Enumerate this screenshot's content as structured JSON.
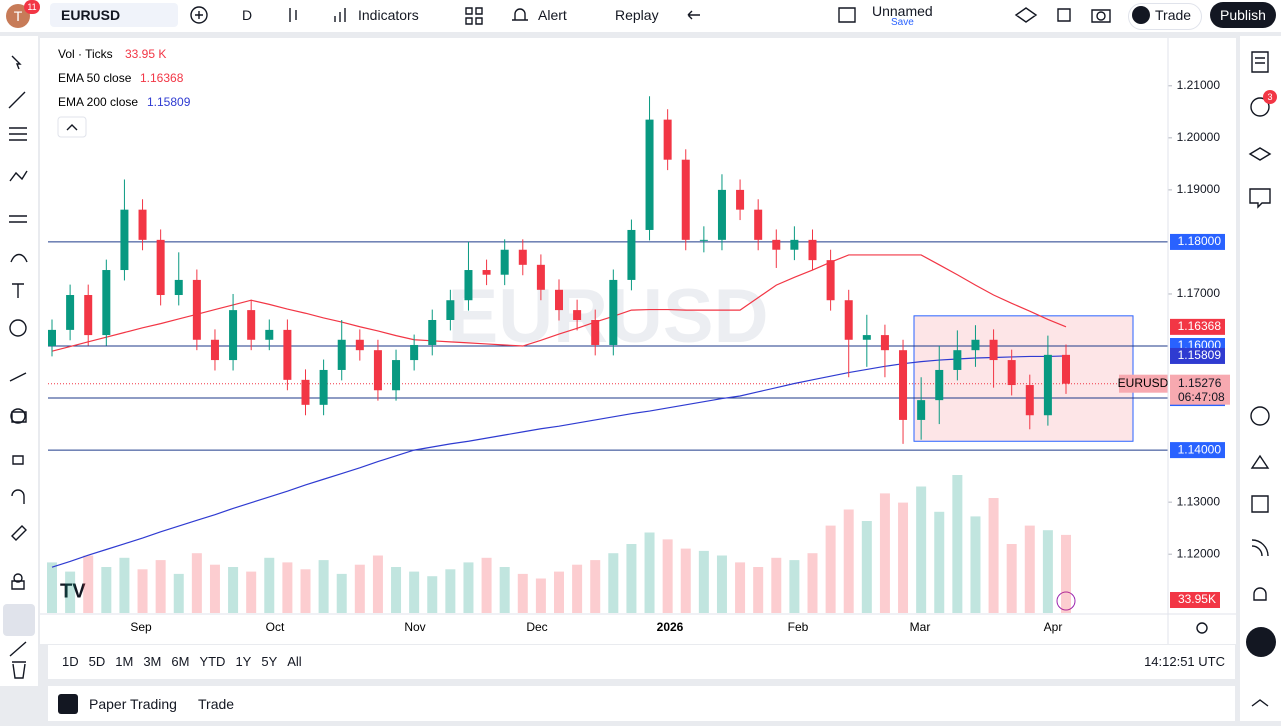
{
  "toolbar": {
    "avatar_badge": "11",
    "symbol": "EURUSD",
    "interval": "D",
    "indicators": "Indicators",
    "alert": "Alert",
    "replay": "Replay",
    "layout_name": "Unnamed",
    "layout_status": "Save",
    "trade": "Trade",
    "publish": "Publish"
  },
  "right_panel": {
    "alerts_badge": "3"
  },
  "chart_data": {
    "type": "candlestick",
    "watermark": "EURUSD",
    "ylim": [
      1.1087,
      1.2188
    ],
    "yticks": [
      {
        "value": 1.21,
        "label": "1.21000"
      },
      {
        "value": 1.2,
        "label": "1.20000"
      },
      {
        "value": 1.19,
        "label": "1.19000"
      },
      {
        "value": 1.17,
        "label": "1.17000"
      },
      {
        "value": 1.13,
        "label": "1.13000"
      },
      {
        "value": 1.12,
        "label": "1.12000"
      }
    ],
    "x_labels": [
      "Sep",
      "Oct",
      "Nov",
      "Dec",
      "2026",
      "Feb",
      "Mar",
      "Apr"
    ],
    "levels": [
      {
        "value": 1.18,
        "label": "1.18000"
      },
      {
        "value": 1.16,
        "label": "1.16000"
      },
      {
        "value": 1.15,
        "label": "1.15000"
      },
      {
        "value": 1.14,
        "label": "1.14000"
      }
    ],
    "level_color": "#1e3a8a",
    "range_box": {
      "top": 1.1658,
      "bottom": 1.1417
    },
    "candles": {
      "name": "EURUSD",
      "up_color": "#089981",
      "down_color": "#f23645",
      "last_label": "1.15276",
      "countdown": "06:47:08",
      "ohlc": [
        [
          1.16,
          1.1651,
          1.158,
          1.1631
        ],
        [
          1.1631,
          1.1718,
          1.1611,
          1.1698
        ],
        [
          1.1698,
          1.1718,
          1.1601,
          1.1621
        ],
        [
          1.1621,
          1.1766,
          1.1601,
          1.1746
        ],
        [
          1.1746,
          1.192,
          1.1726,
          1.1862
        ],
        [
          1.1862,
          1.1882,
          1.1784,
          1.1804
        ],
        [
          1.1804,
          1.1824,
          1.1678,
          1.1698
        ],
        [
          1.1698,
          1.178,
          1.1678,
          1.1727
        ],
        [
          1.1727,
          1.1747,
          1.1592,
          1.1612
        ],
        [
          1.1612,
          1.1632,
          1.1553,
          1.1573
        ],
        [
          1.1573,
          1.17,
          1.1553,
          1.1669
        ],
        [
          1.1669,
          1.1689,
          1.1592,
          1.1612
        ],
        [
          1.1612,
          1.1651,
          1.1592,
          1.1631
        ],
        [
          1.1631,
          1.1651,
          1.1515,
          1.1535
        ],
        [
          1.1535,
          1.1555,
          1.1467,
          1.1487
        ],
        [
          1.1487,
          1.1574,
          1.1467,
          1.1554
        ],
        [
          1.1554,
          1.165,
          1.1534,
          1.1612
        ],
        [
          1.1612,
          1.1632,
          1.1572,
          1.1592
        ],
        [
          1.1592,
          1.1612,
          1.1495,
          1.1515
        ],
        [
          1.1515,
          1.1593,
          1.1495,
          1.1573
        ],
        [
          1.1573,
          1.1622,
          1.1553,
          1.1602
        ],
        [
          1.1602,
          1.167,
          1.1582,
          1.165
        ],
        [
          1.165,
          1.1708,
          1.163,
          1.1688
        ],
        [
          1.1688,
          1.18,
          1.1668,
          1.1746
        ],
        [
          1.1746,
          1.1766,
          1.1717,
          1.1737
        ],
        [
          1.1737,
          1.1805,
          1.1717,
          1.1785
        ],
        [
          1.1785,
          1.1805,
          1.1736,
          1.1756
        ],
        [
          1.1756,
          1.1776,
          1.1688,
          1.1708
        ],
        [
          1.1708,
          1.1728,
          1.1649,
          1.1669
        ],
        [
          1.1669,
          1.1689,
          1.163,
          1.165
        ],
        [
          1.165,
          1.167,
          1.1582,
          1.1602
        ],
        [
          1.1602,
          1.1747,
          1.1582,
          1.1727
        ],
        [
          1.1727,
          1.1843,
          1.1707,
          1.1823
        ],
        [
          1.1823,
          1.208,
          1.1803,
          1.2035
        ],
        [
          1.2035,
          1.2055,
          1.1938,
          1.1958
        ],
        [
          1.1958,
          1.1978,
          1.1784,
          1.1804
        ],
        [
          1.1804,
          1.183,
          1.178,
          1.1804
        ],
        [
          1.1804,
          1.193,
          1.1784,
          1.19
        ],
        [
          1.19,
          1.192,
          1.1842,
          1.1862
        ],
        [
          1.1862,
          1.1882,
          1.1784,
          1.1804
        ],
        [
          1.1804,
          1.1824,
          1.175,
          1.1785
        ],
        [
          1.1785,
          1.183,
          1.1765,
          1.1804
        ],
        [
          1.1804,
          1.1824,
          1.1745,
          1.1765
        ],
        [
          1.1765,
          1.1785,
          1.1668,
          1.1688
        ],
        [
          1.1688,
          1.1708,
          1.154,
          1.1612
        ],
        [
          1.1612,
          1.166,
          1.156,
          1.1621
        ],
        [
          1.1621,
          1.1641,
          1.154,
          1.1592
        ],
        [
          1.1592,
          1.1612,
          1.1412,
          1.1458
        ],
        [
          1.1458,
          1.154,
          1.142,
          1.1496
        ],
        [
          1.1496,
          1.16,
          1.145,
          1.1554
        ],
        [
          1.1554,
          1.163,
          1.1534,
          1.1592
        ],
        [
          1.1592,
          1.164,
          1.156,
          1.1612
        ],
        [
          1.1612,
          1.1632,
          1.152,
          1.1573
        ],
        [
          1.1573,
          1.1593,
          1.1505,
          1.1525
        ],
        [
          1.1525,
          1.1545,
          1.144,
          1.1467
        ],
        [
          1.1467,
          1.162,
          1.1447,
          1.1583
        ],
        [
          1.1583,
          1.1603,
          1.1508,
          1.15276
        ]
      ]
    },
    "volume": {
      "name": "Vol · Ticks",
      "legend_label": "33.95 K",
      "last_label": "33.95K",
      "values": [
        22,
        18,
        25,
        20,
        24,
        19,
        23,
        17,
        26,
        21,
        20,
        18,
        24,
        22,
        19,
        23,
        17,
        21,
        25,
        20,
        18,
        16,
        19,
        22,
        24,
        20,
        17,
        15,
        18,
        21,
        23,
        26,
        30,
        35,
        32,
        28,
        27,
        25,
        22,
        20,
        24,
        23,
        26,
        38,
        45,
        40,
        52,
        48,
        55,
        44,
        60,
        42,
        50,
        30,
        38,
        36,
        33.95
      ]
    },
    "series": [
      {
        "name": "EMA 50 close",
        "color": "#f23645",
        "last_label": "1.16368",
        "values": [
          1.159,
          1.1599,
          1.1608,
          1.1617,
          1.1626,
          1.1635,
          1.1643,
          1.1652,
          1.1661,
          1.167,
          1.1679,
          1.1688,
          1.168,
          1.1671,
          1.1663,
          1.1654,
          1.1646,
          1.1637,
          1.1629,
          1.162,
          1.1612,
          1.161,
          1.1608,
          1.1606,
          1.1604,
          1.1602,
          1.16,
          1.1611,
          1.1623,
          1.1634,
          1.1646,
          1.1657,
          1.1669,
          1.167,
          1.167,
          1.1669,
          1.1669,
          1.1669,
          1.1669,
          1.1693,
          1.1717,
          1.1732,
          1.1746,
          1.1761,
          1.1775,
          1.1775,
          1.1775,
          1.1775,
          1.1775,
          1.1756,
          1.1737,
          1.1717,
          1.1698,
          1.1682,
          1.1667,
          1.1651,
          1.16368
        ]
      },
      {
        "name": "EMA 200 close",
        "color": "#2f3bd1",
        "last_label": "1.15809",
        "values": [
          1.1175,
          1.1186,
          1.1198,
          1.1209,
          1.122,
          1.1231,
          1.1243,
          1.1254,
          1.1265,
          1.1276,
          1.1288,
          1.1299,
          1.131,
          1.1321,
          1.1333,
          1.1344,
          1.1355,
          1.1366,
          1.1378,
          1.1389,
          1.14,
          1.1406,
          1.1412,
          1.1417,
          1.1423,
          1.1429,
          1.1435,
          1.1441,
          1.1446,
          1.1452,
          1.1458,
          1.1464,
          1.147,
          1.1475,
          1.1481,
          1.1487,
          1.1493,
          1.1499,
          1.1504,
          1.1512,
          1.152,
          1.1528,
          1.1535,
          1.1542,
          1.1549,
          1.1555,
          1.1561,
          1.1566,
          1.157,
          1.1573,
          1.1575,
          1.1577,
          1.1578,
          1.1579,
          1.158,
          1.158,
          1.15809
        ]
      }
    ]
  },
  "bottom_bar": {
    "ranges": [
      "1D",
      "5D",
      "1M",
      "3M",
      "6M",
      "YTD",
      "1Y",
      "5Y",
      "All"
    ],
    "clock": "14:12:51 UTC"
  },
  "footer": {
    "paper_trading": "Paper Trading",
    "trade": "Trade"
  }
}
